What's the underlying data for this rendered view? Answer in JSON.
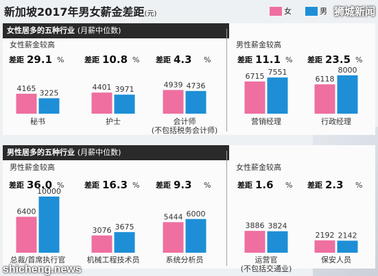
{
  "title": "新加坡2017年男女薪金差距",
  "title_unit": "(元)",
  "legend": [
    {
      "name": "女",
      "color": "#ee6fa0"
    },
    {
      "name": "男",
      "color": "#1e8fd6"
    }
  ],
  "watermarks": {
    "top_right": "狮城新闻",
    "bottom_left": "shicheng.news"
  },
  "chart_data": [
    {
      "type": "bar",
      "header": "女性居多的五种行业",
      "header_note": "(月薪中位数)",
      "groups": [
        {
          "label": "女性薪金较高",
          "categories": [
            {
              "name": "秘书",
              "note": "",
              "female": 4165,
              "male": 3225,
              "gap": "29.1"
            },
            {
              "name": "护士",
              "note": "",
              "female": 4401,
              "male": 3971,
              "gap": "10.8"
            },
            {
              "name": "会计师",
              "note": "(不包括税务会计师)",
              "female": 4939,
              "male": 4736,
              "gap": "4.3"
            }
          ]
        },
        {
          "label": "男性薪金较高",
          "categories": [
            {
              "name": "营销经理",
              "note": "",
              "female": 6715,
              "male": 7551,
              "gap": "11.1"
            },
            {
              "name": "行政经理",
              "note": "",
              "female": 6118,
              "male": 8000,
              "gap": "23.5"
            }
          ]
        }
      ]
    },
    {
      "type": "bar",
      "header": "男性居多的五种行业",
      "header_note": "(月薪中位数)",
      "groups": [
        {
          "label": "男性薪金较高",
          "categories": [
            {
              "name": "总裁/首席执行官",
              "note": "",
              "female": 6400,
              "male": 10000,
              "gap": "36.0"
            },
            {
              "name": "机械工程技术员",
              "note": "",
              "female": 3076,
              "male": 3675,
              "gap": "16.3"
            },
            {
              "name": "系统分析员",
              "note": "",
              "female": 5444,
              "male": 6000,
              "gap": "9.3"
            }
          ]
        },
        {
          "label": "女性薪金较高",
          "categories": [
            {
              "name": "运营官",
              "note": "(不包括交通业)",
              "female": 3886,
              "male": 3824,
              "gap": "1.6"
            },
            {
              "name": "保安人员",
              "note": "",
              "female": 2192,
              "male": 2142,
              "gap": "2.3"
            }
          ]
        }
      ]
    }
  ],
  "gap_label": "差距",
  "percent_sign": "%"
}
